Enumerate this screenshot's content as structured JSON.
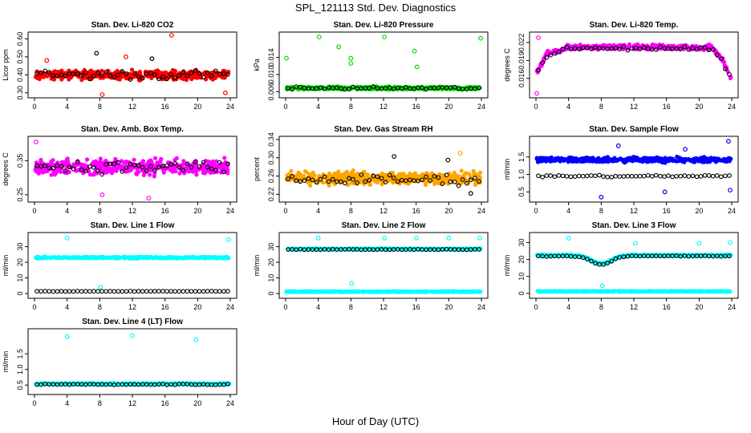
{
  "title": "SPL_121113  Std. Dev. Diagnostics",
  "xlabel": "Hour of Day (UTC)",
  "colors": {
    "black": "#000000",
    "red": "#ff0000",
    "green": "#00dd00",
    "magenta": "#ff00ff",
    "orange": "#ffa500",
    "blue": "#0000ff",
    "cyan": "#00ffff"
  },
  "chart_data": [
    {
      "type": "scatter",
      "title": "Stan. Dev. Li-820 CO2",
      "ylabel": "Licor ppm",
      "xlim": [
        0,
        24
      ],
      "xticks": [
        "0",
        "4",
        "8",
        "12",
        "16",
        "20",
        "24"
      ],
      "ylim": [
        0.29,
        0.62
      ],
      "yticks": [
        "0.30",
        "0.40",
        "0.50",
        "0.60"
      ],
      "series": [
        {
          "color": "red",
          "marker": "filled",
          "base": 0.4,
          "spread": 0.035,
          "outliers": [
            [
              1.5,
              0.48
            ],
            [
              8.3,
              0.29
            ],
            [
              16.8,
              0.62
            ],
            [
              23.4,
              0.3
            ],
            [
              11.2,
              0.5
            ]
          ]
        },
        {
          "color": "black",
          "marker": "open",
          "base": 0.4,
          "spread": 0.04,
          "outliers": [
            [
              7.6,
              0.52
            ],
            [
              14.4,
              0.49
            ]
          ]
        }
      ]
    },
    {
      "type": "scatter",
      "title": "Stan. Dev. Li-820 Pressure",
      "ylabel": "kPa",
      "xlim": [
        0,
        24
      ],
      "xticks": [
        "0",
        "4",
        "8",
        "12",
        "16",
        "20",
        "24"
      ],
      "ylim": [
        0.0053,
        0.0192
      ],
      "yticks": [
        "0.006",
        "0.010",
        "0.014"
      ],
      "series": [
        {
          "color": "green",
          "marker": "filled",
          "base": 0.0068,
          "spread": 0.0005,
          "outliers": [
            [
              0.1,
              0.0138
            ],
            [
              4.1,
              0.0188
            ],
            [
              6.5,
              0.0165
            ],
            [
              8.0,
              0.0138
            ],
            [
              8.0,
              0.0126
            ],
            [
              12.1,
              0.0188
            ],
            [
              15.8,
              0.0155
            ],
            [
              16.1,
              0.0118
            ],
            [
              23.9,
              0.0185
            ]
          ]
        },
        {
          "color": "black",
          "marker": "open",
          "base": 0.0068,
          "spread": 0.0006,
          "outliers": []
        }
      ]
    },
    {
      "type": "scatter",
      "title": "Stan. Dev. Li-820 Temp.",
      "ylabel": "degrees C",
      "xlim": [
        0,
        24
      ],
      "xticks": [
        "0",
        "4",
        "8",
        "12",
        "16",
        "20",
        "24"
      ],
      "ylim": [
        0.0133,
        0.0232
      ],
      "yticks": [
        "0.016",
        "0.019",
        "0.022"
      ],
      "series": [
        {
          "color": "magenta",
          "marker": "filled",
          "base": 0.0212,
          "spread": 0.0006,
          "shape": "temp",
          "outliers": [
            [
              0.3,
              0.0228
            ],
            [
              0.1,
              0.0135
            ]
          ]
        },
        {
          "color": "black",
          "marker": "open",
          "base": 0.021,
          "spread": 0.0005,
          "shape": "temp",
          "outliers": []
        }
      ]
    },
    {
      "type": "scatter",
      "title": "Stan. Dev. Amb. Box Temp.",
      "ylabel": "degrees C",
      "xlim": [
        0,
        24
      ],
      "xticks": [
        "0",
        "4",
        "8",
        "12",
        "16",
        "20",
        "24"
      ],
      "ylim": [
        0.238,
        0.412
      ],
      "yticks": [
        "0.25",
        "0.35"
      ],
      "series": [
        {
          "color": "magenta",
          "marker": "filled",
          "base": 0.332,
          "spread": 0.032,
          "outliers": [
            [
              0.2,
              0.405
            ],
            [
              14.0,
              0.24
            ],
            [
              8.3,
              0.25
            ]
          ]
        },
        {
          "color": "black",
          "marker": "open",
          "base": 0.332,
          "spread": 0.03,
          "outliers": []
        }
      ]
    },
    {
      "type": "scatter",
      "title": "Stan. Dev. Gas Stream RH",
      "ylabel": "percent",
      "xlim": [
        0,
        24
      ],
      "xticks": [
        "0",
        "4",
        "8",
        "12",
        "16",
        "20",
        "24"
      ],
      "ylim": [
        0.21,
        0.34
      ],
      "yticks": [
        "0.22",
        "0.26",
        "0.30",
        "0.34"
      ],
      "series": [
        {
          "color": "orange",
          "marker": "filled",
          "base": 0.255,
          "spread": 0.02,
          "outliers": [
            [
              21.4,
              0.31
            ]
          ]
        },
        {
          "color": "black",
          "marker": "open",
          "base": 0.252,
          "spread": 0.018,
          "outliers": [
            [
              13.3,
              0.303
            ],
            [
              19.9,
              0.295
            ],
            [
              22.7,
              0.222
            ]
          ]
        }
      ]
    },
    {
      "type": "scatter",
      "title": "Stan. Dev. Sample Flow",
      "ylabel": "ml/min",
      "xlim": [
        0,
        24
      ],
      "xticks": [
        "0",
        "4",
        "8",
        "12",
        "16",
        "20",
        "24"
      ],
      "ylim": [
        0.3,
        2.0
      ],
      "yticks": [
        "0.5",
        "1.0",
        "1.5"
      ],
      "series": [
        {
          "color": "blue",
          "marker": "filled",
          "base": 1.42,
          "spread": 0.1,
          "outliers": [
            [
              23.6,
              1.95
            ],
            [
              8.0,
              0.35
            ],
            [
              23.8,
              0.55
            ],
            [
              15.8,
              0.5
            ],
            [
              10.1,
              1.82
            ],
            [
              18.3,
              1.72
            ]
          ]
        },
        {
          "color": "black",
          "marker": "open",
          "base": 0.95,
          "spread": 0.05,
          "outliers": []
        }
      ]
    },
    {
      "type": "scatter",
      "title": "Stan. Dev. Line 1 Flow",
      "ylabel": "ml/min",
      "xlim": [
        0,
        24
      ],
      "xticks": [
        "0",
        "4",
        "8",
        "12",
        "16",
        "20",
        "24"
      ],
      "ylim": [
        -1,
        37
      ],
      "yticks": [
        "0",
        "10",
        "20",
        "30"
      ],
      "series": [
        {
          "color": "cyan",
          "marker": "filled",
          "base": 23.0,
          "spread": 0.7,
          "outliers": [
            [
              4.0,
              35.5
            ],
            [
              23.8,
              34.5
            ],
            [
              8.1,
              4.0
            ]
          ]
        },
        {
          "color": "black",
          "marker": "open",
          "base": 1.4,
          "spread": 0.2,
          "outliers": []
        }
      ]
    },
    {
      "type": "scatter",
      "title": "Stan. Dev. Line 2 Flow",
      "ylabel": "ml/min",
      "xlim": [
        0,
        24
      ],
      "xticks": [
        "0",
        "4",
        "8",
        "12",
        "16",
        "20",
        "24"
      ],
      "ylim": [
        -1,
        37
      ],
      "yticks": [
        "0",
        "10",
        "20",
        "30"
      ],
      "series": [
        {
          "color": "cyan",
          "marker": "filled",
          "base": 1.2,
          "spread": 0.3,
          "outliers": [
            [
              4.0,
              35.5
            ],
            [
              8.1,
              6.5
            ],
            [
              12.1,
              35.5
            ],
            [
              16.0,
              35.5
            ],
            [
              20.0,
              35.5
            ],
            [
              23.8,
              35.5
            ]
          ]
        },
        {
          "color": "cyan",
          "marker": "filled",
          "base": 28.5,
          "spread": 0.6,
          "outliers": []
        },
        {
          "color": "black",
          "marker": "open",
          "base": 28.2,
          "spread": 0.3,
          "outliers": []
        }
      ]
    },
    {
      "type": "scatter",
      "title": "Stan. Dev. Line 3 Flow",
      "ylabel": "ml/min",
      "xlim": [
        0,
        24
      ],
      "xticks": [
        "0",
        "4",
        "8",
        "12",
        "16",
        "20",
        "24"
      ],
      "ylim": [
        -1,
        34
      ],
      "yticks": [
        "0",
        "10",
        "20",
        "30"
      ],
      "series": [
        {
          "color": "cyan",
          "marker": "filled",
          "base": 1.2,
          "spread": 0.3,
          "outliers": [
            [
              4.0,
              32.5
            ],
            [
              8.1,
              4.5
            ],
            [
              12.2,
              29.5
            ],
            [
              20.0,
              29.5
            ],
            [
              23.8,
              30.0
            ]
          ]
        },
        {
          "color": "cyan",
          "marker": "filled",
          "base": 22.5,
          "spread": 0.6,
          "shape": "dip",
          "outliers": []
        },
        {
          "color": "black",
          "marker": "open",
          "base": 22.0,
          "spread": 0.4,
          "shape": "dip",
          "outliers": []
        }
      ]
    },
    {
      "type": "scatter",
      "title": "Stan. Dev. Line 4 (LT) Flow",
      "ylabel": "ml/min",
      "xlim": [
        0,
        24
      ],
      "xticks": [
        "0",
        "4",
        "8",
        "12",
        "16",
        "20",
        "24"
      ],
      "ylim": [
        0.3,
        2.2
      ],
      "yticks": [
        "0.5",
        "1.0",
        "1.5"
      ],
      "series": [
        {
          "color": "cyan",
          "marker": "filled",
          "base": 0.54,
          "spread": 0.03,
          "outliers": [
            [
              4.0,
              2.05
            ],
            [
              12.0,
              2.08
            ],
            [
              19.8,
              1.95
            ]
          ]
        },
        {
          "color": "black",
          "marker": "open",
          "base": 0.52,
          "spread": 0.03,
          "outliers": []
        }
      ]
    }
  ]
}
